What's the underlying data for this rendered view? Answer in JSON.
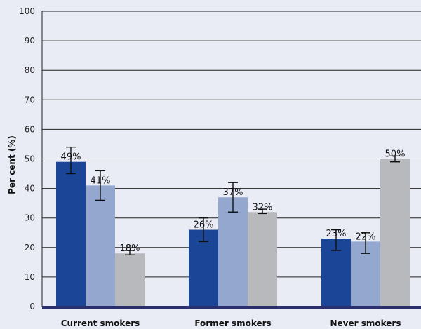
{
  "chart_data": {
    "type": "bar",
    "title": "",
    "xlabel": "",
    "ylabel": "Per cent (%)",
    "ylim": [
      0,
      100
    ],
    "yticks": [
      0,
      10,
      20,
      30,
      40,
      50,
      60,
      70,
      80,
      90,
      100
    ],
    "grid": true,
    "categories": [
      "Current smokers",
      "Former smokers",
      "Never smokers"
    ],
    "series": [
      {
        "color": "#1b4597",
        "values": [
          49,
          26,
          23
        ],
        "error_low": [
          45,
          22,
          19
        ],
        "error_high": [
          54,
          30,
          26
        ],
        "labels": [
          "49%",
          "26%",
          "23%"
        ]
      },
      {
        "color": "#94a8cf",
        "values": [
          41,
          37,
          22
        ],
        "error_low": [
          36,
          32,
          18
        ],
        "error_high": [
          46,
          42,
          25
        ],
        "labels": [
          "41%",
          "37%",
          "22%"
        ]
      },
      {
        "color": "#b8b9bd",
        "values": [
          18,
          32,
          50
        ],
        "error_low": [
          17.5,
          31.5,
          49
        ],
        "error_high": [
          19,
          33,
          51
        ],
        "labels": [
          "18%",
          "32%",
          "50%"
        ]
      }
    ]
  }
}
